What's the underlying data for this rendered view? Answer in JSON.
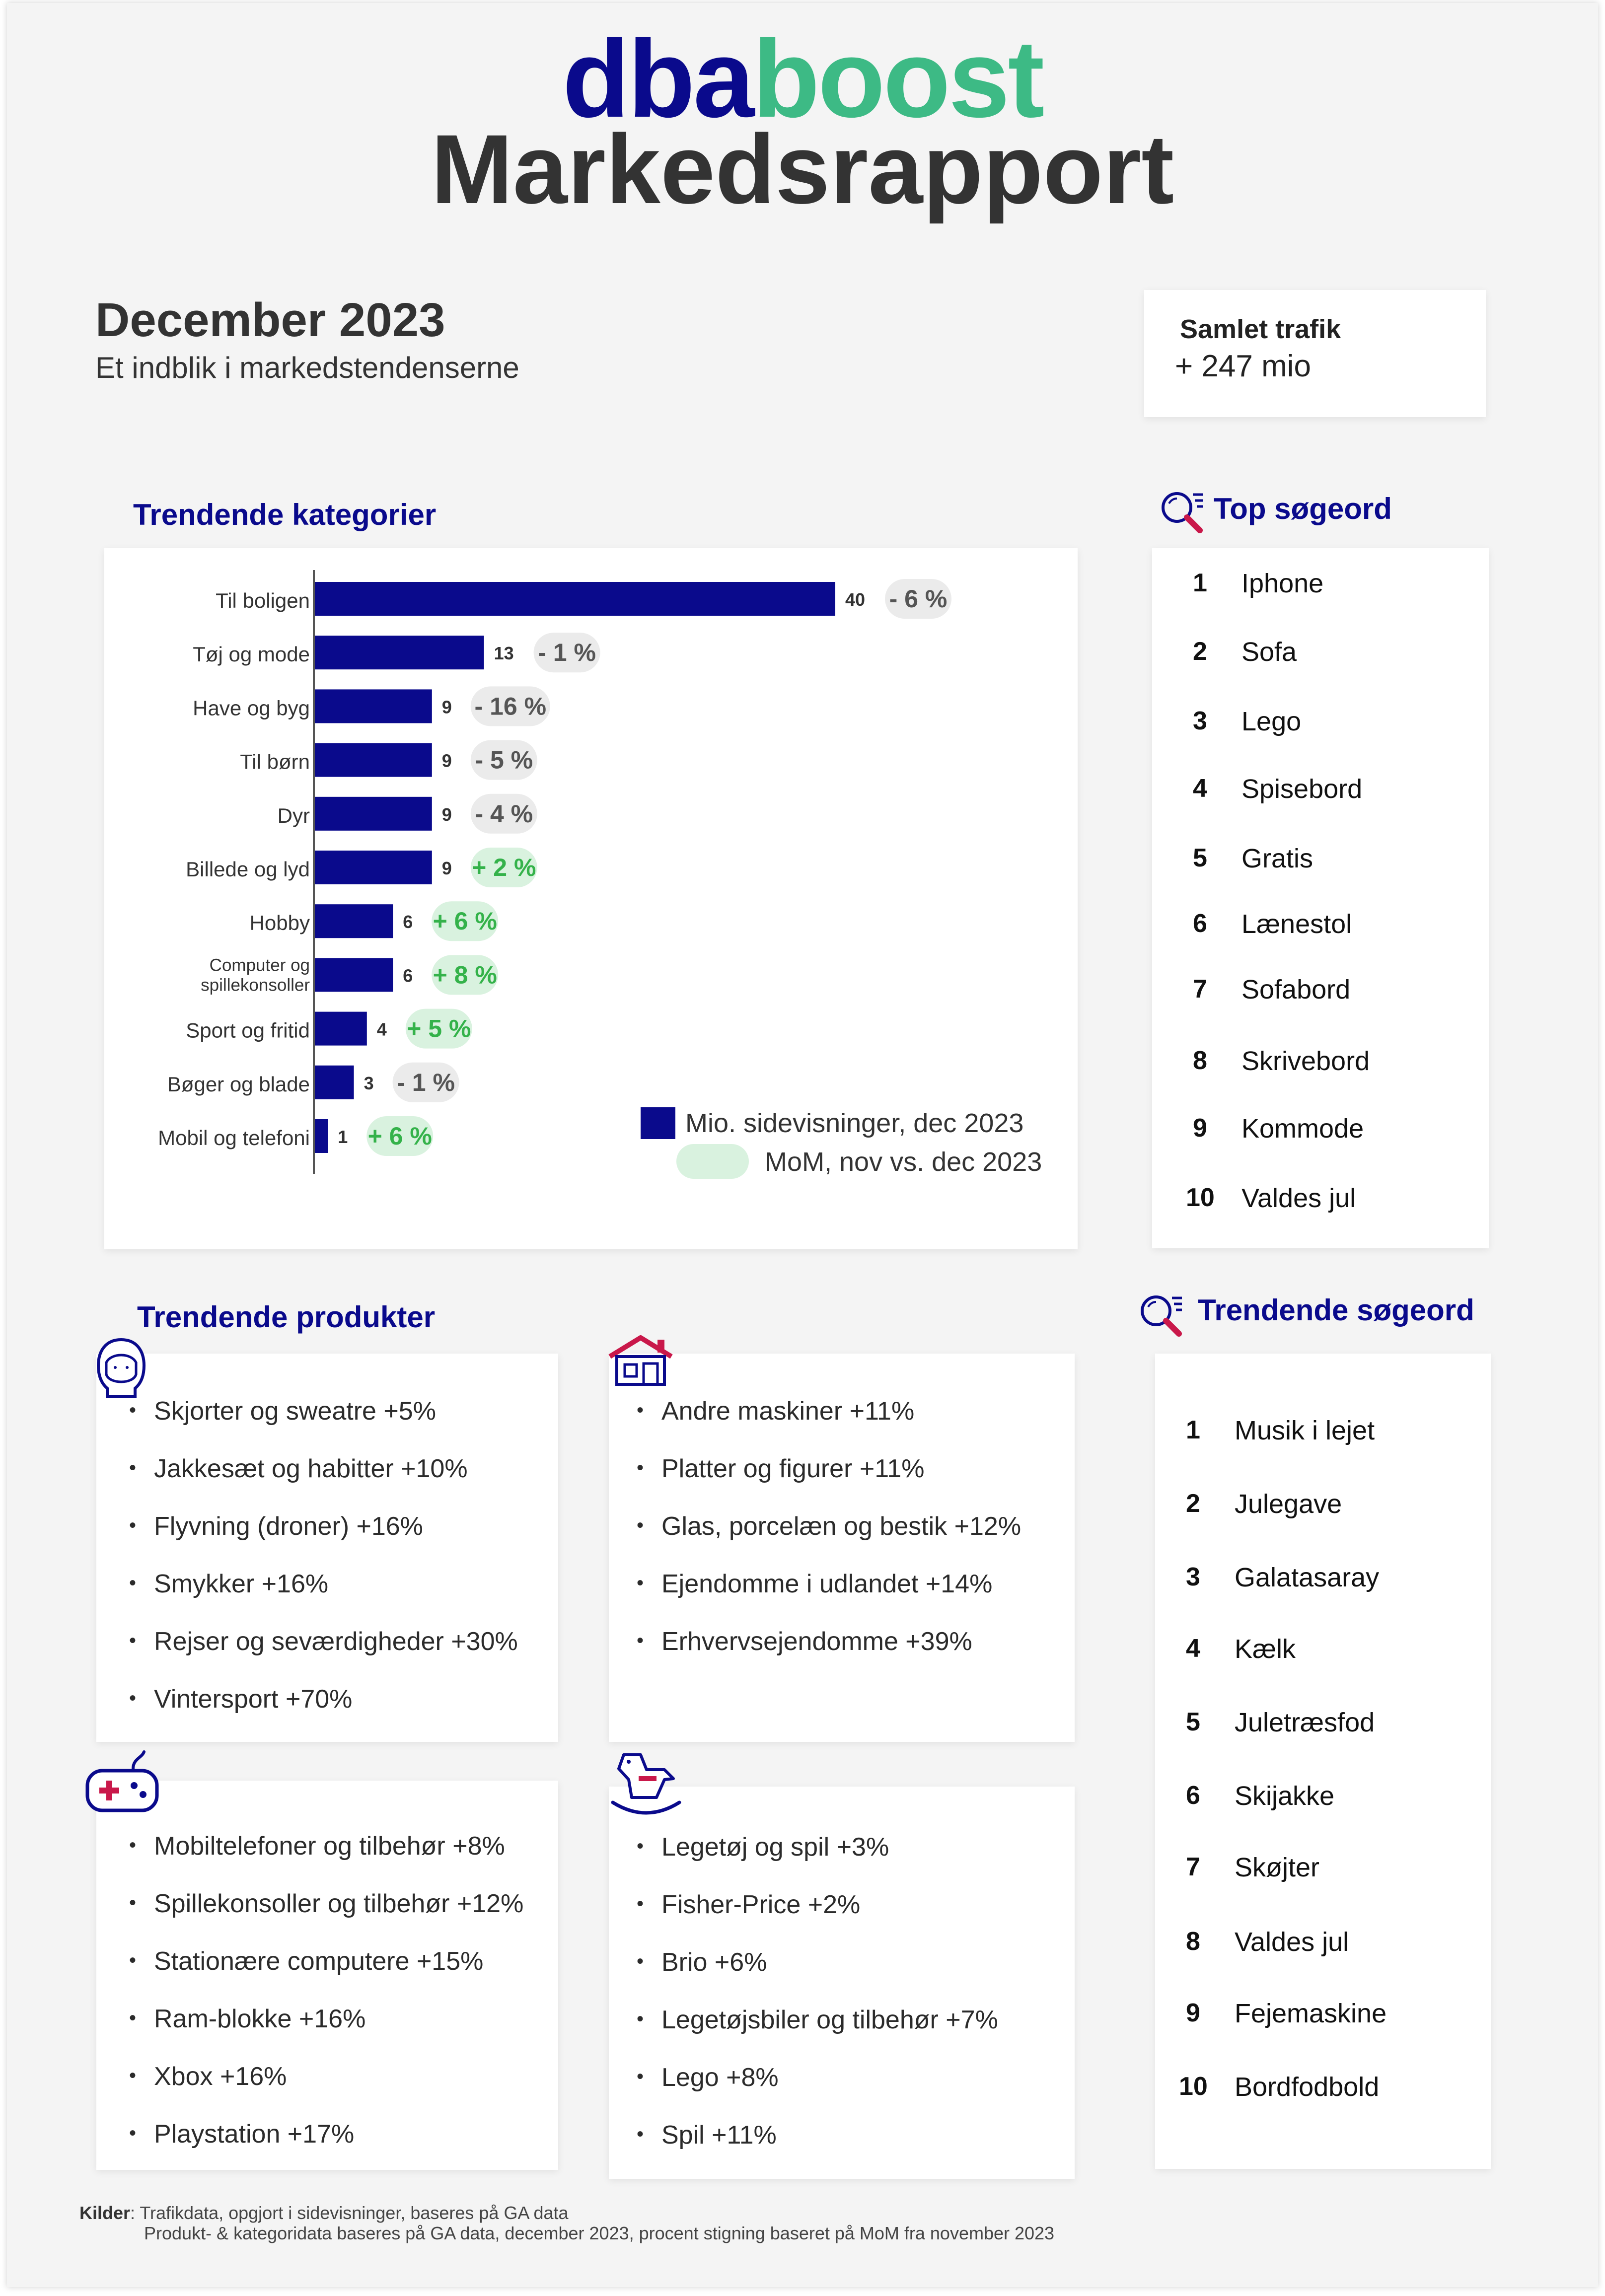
{
  "brand": {
    "part1": "dba",
    "part2": "boost",
    "color1": "#0a0a8c",
    "color2": "#3dba85"
  },
  "report_title": "Markedsrapport",
  "period": {
    "title": "December 2023",
    "subtitle": "Et indblik i markedstendenserne"
  },
  "traffic": {
    "label": "Samlet trafik",
    "value": "+ 247 mio"
  },
  "trending_categories": {
    "title": "Trendende kategorier",
    "legend": {
      "bars": "Mio. sidevisninger, dec 2023",
      "badges": "MoM, nov vs. dec 2023"
    }
  },
  "chart_data": {
    "type": "bar",
    "orientation": "horizontal",
    "categories": [
      "Til boligen",
      "Tøj og mode",
      "Have og byg",
      "Til børn",
      "Dyr",
      "Billede og lyd",
      "Hobby",
      "Computer og spillekonsoller",
      "Sport og fritid",
      "Bøger og blade",
      "Mobil og telefoni"
    ],
    "category_lines": [
      [
        "Til boligen"
      ],
      [
        "Tøj og mode"
      ],
      [
        "Have og byg"
      ],
      [
        "Til børn"
      ],
      [
        "Dyr"
      ],
      [
        "Billede og lyd"
      ],
      [
        "Hobby"
      ],
      [
        "Computer og",
        "spillekonsoller"
      ],
      [
        "Sport og fritid"
      ],
      [
        "Bøger og blade"
      ],
      [
        "Mobil og telefoni"
      ]
    ],
    "values": [
      40,
      13,
      9,
      9,
      9,
      9,
      6,
      6,
      4,
      3,
      1
    ],
    "value_labels": [
      "40",
      "13",
      "9",
      "9",
      "9",
      "9",
      "6",
      "6",
      "4",
      "3",
      "1"
    ],
    "mom_labels": [
      "- 6 %",
      "- 1 %",
      "- 16 %",
      "- 5 %",
      "- 4 %",
      "+ 2 %",
      "+ 6 %",
      "+ 8 %",
      "+ 5 %",
      "- 1 %",
      "+ 6 %"
    ],
    "mom_values": [
      -6,
      -1,
      -16,
      -5,
      -4,
      2,
      6,
      8,
      5,
      -1,
      6
    ],
    "colors": {
      "bar": "#0a0a8c",
      "neg_badge_bg": "#ebebeb",
      "neg_badge_text": "#555555",
      "pos_badge_bg": "#d9f2df",
      "pos_badge_text": "#34b24a"
    }
  },
  "top_search": {
    "title": "Top søgeord",
    "icon": "magnifier-icon",
    "items": [
      {
        "rank": "1",
        "term": "Iphone"
      },
      {
        "rank": "2",
        "term": "Sofa"
      },
      {
        "rank": "3",
        "term": "Lego"
      },
      {
        "rank": "4",
        "term": "Spisebord"
      },
      {
        "rank": "5",
        "term": "Gratis"
      },
      {
        "rank": "6",
        "term": "Lænestol"
      },
      {
        "rank": "7",
        "term": "Sofabord"
      },
      {
        "rank": "8",
        "term": "Skrivebord"
      },
      {
        "rank": "9",
        "term": "Kommode"
      },
      {
        "rank": "10",
        "term": "Valdes jul"
      }
    ]
  },
  "trending_search": {
    "title": "Trendende søgeord",
    "icon": "magnifier-icon",
    "items": [
      {
        "rank": "1",
        "term": "Musik i lejet"
      },
      {
        "rank": "2",
        "term": "Julegave"
      },
      {
        "rank": "3",
        "term": "Galatasaray"
      },
      {
        "rank": "4",
        "term": "Kælk"
      },
      {
        "rank": "5",
        "term": "Juletræsfod"
      },
      {
        "rank": "6",
        "term": "Skijakke"
      },
      {
        "rank": "7",
        "term": "Skøjter"
      },
      {
        "rank": "8",
        "term": "Valdes jul"
      },
      {
        "rank": "9",
        "term": "Fejemaskine"
      },
      {
        "rank": "10",
        "term": "Bordfodbold"
      }
    ]
  },
  "trending_products": {
    "title": "Trendende produkter",
    "groups": [
      {
        "icon": "person-icon",
        "items": [
          "Skjorter og sweatre +5%",
          "Jakkesæt og habitter +10%",
          "Flyvning (droner) +16%",
          "Smykker +16%",
          "Rejser og seværdigheder +30%",
          "Vintersport +70%"
        ]
      },
      {
        "icon": "house-icon",
        "items": [
          "Andre maskiner +11%",
          "Platter og figurer +11%",
          "Glas, porcelæn og bestik +12%",
          "Ejendomme i udlandet +14%",
          "Erhvervsejendomme +39%"
        ]
      },
      {
        "icon": "gamepad-icon",
        "items": [
          "Mobiltelefoner og tilbehør +8%",
          "Spillekonsoller og tilbehør +12%",
          "Stationære computere +15%",
          "Ram-blokke +16%",
          "Xbox +16%",
          "Playstation +17%"
        ]
      },
      {
        "icon": "rocking-horse-icon",
        "items": [
          "Legetøj og spil +3%",
          "Fisher-Price +2%",
          "Brio +6%",
          "Legetøjsbiler og tilbehør +7%",
          "Lego +8%",
          "Spil +11%"
        ]
      }
    ]
  },
  "sources": {
    "label": "Kilder",
    "line1": ": Trafikdata, opgjort i sidevisninger, baseres på GA data",
    "line2": "Produkt- & kategoridata baseres på GA data, december 2023, procent stigning baseret på MoM fra november 2023"
  }
}
